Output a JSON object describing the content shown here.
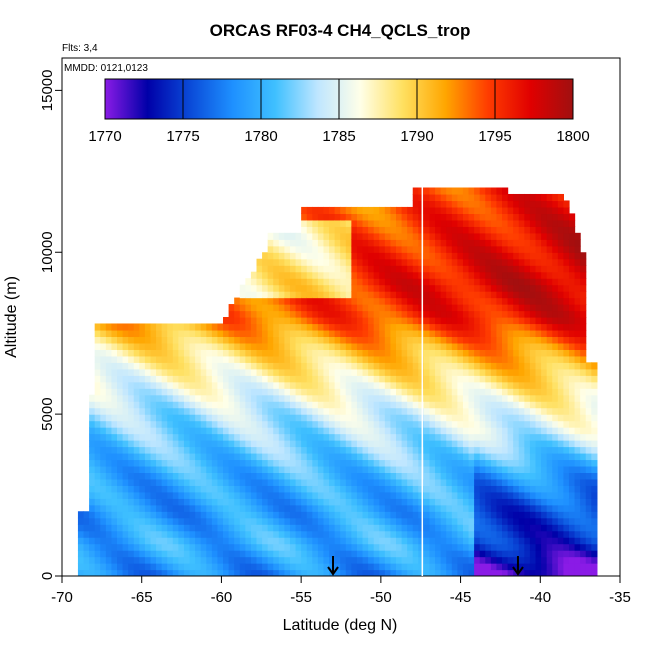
{
  "chart_data": {
    "type": "heatmap",
    "title": "ORCAS RF03-4 CH4_QCLS_trop",
    "annotations": [
      "Flts: 3,4",
      "MMDD: 0121,0123"
    ],
    "xlabel": "Latitude (deg N)",
    "ylabel": "Altitude (m)",
    "xlim": [
      -70,
      -35
    ],
    "ylim": [
      0,
      16000
    ],
    "xticks": [
      -70,
      -65,
      -60,
      -55,
      -50,
      -45,
      -40,
      -35
    ],
    "yticks": [
      0,
      5000,
      10000,
      15000
    ],
    "colorbar": {
      "ticks": [
        1770,
        1775,
        1780,
        1785,
        1790,
        1795,
        1800
      ],
      "range": [
        1770,
        1800
      ],
      "colors": [
        "#8a1be6",
        "#0000a8",
        "#0a4ad8",
        "#1e90ff",
        "#3fc0ff",
        "#bfe6ff",
        "#ffffe8",
        "#ffe060",
        "#ffa600",
        "#ff3c00",
        "#e00000",
        "#a01010"
      ],
      "placement": "top-inside"
    },
    "grid": false,
    "markers": {
      "vertical_line_lat": -47.4,
      "arrows_at_lat": [
        -53,
        -41.4
      ]
    },
    "field": {
      "description_units": "CH4 ppb as a function of latitude and altitude",
      "altitude_profile": [
        {
          "alt": 0,
          "value": 1778
        },
        {
          "alt": 1000,
          "value": 1780
        },
        {
          "alt": 2000,
          "value": 1779
        },
        {
          "alt": 3000,
          "value": 1780
        },
        {
          "alt": 4000,
          "value": 1782
        },
        {
          "alt": 5000,
          "value": 1784
        },
        {
          "alt": 6000,
          "value": 1787
        },
        {
          "alt": 7000,
          "value": 1790
        },
        {
          "alt": 8000,
          "value": 1794
        },
        {
          "alt": 9000,
          "value": 1795
        },
        {
          "alt": 10000,
          "value": 1794
        },
        {
          "alt": 11000,
          "value": 1793
        },
        {
          "alt": 12000,
          "value": 1792
        }
      ]
    }
  }
}
